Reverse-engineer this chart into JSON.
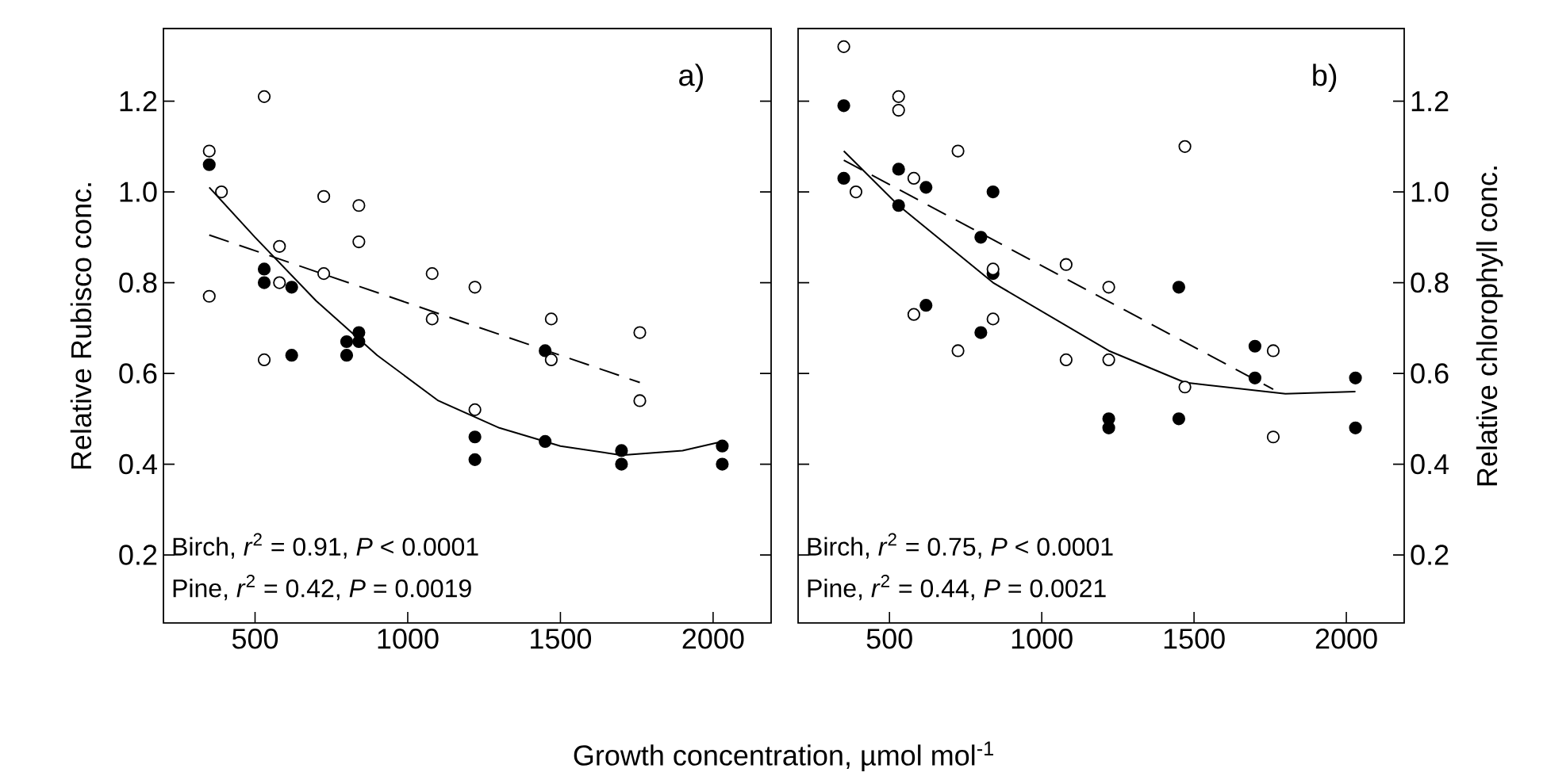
{
  "chart_data": [
    {
      "type": "scatter",
      "ylabel": "Relative Rubisco conc.",
      "xlabel": "Growth concentration, µmol mol$^{-1}$",
      "annotations": [
        "a)",
        "Birch, *r*$^{2}$ = 0.91, *P* < 0.0001",
        "Pine,  *r*$^{2}$ = 0.42, *P* = 0.0019"
      ],
      "xlim": [
        200,
        2190
      ],
      "xticks": [
        500,
        1000,
        1500,
        2000
      ],
      "ylim": [
        0.05,
        1.36
      ],
      "yticks": [
        0.2,
        0.4,
        0.6,
        0.8,
        {
          "value": 1.0,
          "label": "1.0"
        },
        1.2
      ],
      "grid": false,
      "series": [
        {
          "marker": "circle",
          "color": "#000000",
          "x": [
            350,
            530,
            530,
            620,
            620,
            800,
            800,
            840,
            840,
            1220,
            1220,
            1450,
            1450,
            1700,
            1700,
            2030,
            2030
          ],
          "values": [
            1.06,
            0.83,
            0.8,
            0.79,
            0.64,
            0.67,
            0.64,
            0.69,
            0.67,
            0.46,
            0.41,
            0.45,
            0.65,
            0.43,
            0.4,
            0.44,
            0.4
          ]
        },
        {
          "marker": "circle",
          "color": "#ffffff",
          "x": [
            350,
            350,
            390,
            530,
            530,
            580,
            580,
            725,
            725,
            840,
            840,
            1080,
            1080,
            1220,
            1220,
            1470,
            1470,
            1760,
            1760
          ],
          "values": [
            1.09,
            0.77,
            1.0,
            1.21,
            0.63,
            0.88,
            0.8,
            0.99,
            0.82,
            0.97,
            0.89,
            0.82,
            0.72,
            0.79,
            0.52,
            0.72,
            0.63,
            0.69,
            0.54
          ]
        },
        {
          "type": "line",
          "color": "#000000",
          "line_style": "solid",
          "x": [
            350,
            500,
            700,
            900,
            1100,
            1300,
            1500,
            1700,
            1900,
            2030
          ],
          "values": [
            1.01,
            0.9,
            0.76,
            0.64,
            0.54,
            0.48,
            0.44,
            0.42,
            0.43,
            0.45
          ]
        },
        {
          "type": "line",
          "color": "#000000",
          "line_style": "dashed",
          "x": [
            350,
            1760
          ],
          "values": [
            0.905,
            0.58
          ]
        }
      ]
    },
    {
      "type": "scatter",
      "y2label": "Relative chlorophyll conc.",
      "annotations": [
        "b)",
        "Birch, *r*$^{2}$ = 0.75, *P* < 0.0001",
        "Pine,  *r*$^{2}$ = 0.44, *P* = 0.0021"
      ],
      "xlim": [
        200,
        2190
      ],
      "xticks": [
        500,
        1000,
        1500,
        2000
      ],
      "y2lim": [
        0.05,
        1.36
      ],
      "y2ticks": [
        0.2,
        0.4,
        0.6,
        0.8,
        {
          "value": 1.0,
          "label": "1.0"
        },
        1.2
      ],
      "grid": false,
      "series": [
        {
          "marker": "circle",
          "axis": "y2",
          "color": "#000000",
          "x": [
            350,
            350,
            530,
            530,
            620,
            620,
            800,
            800,
            840,
            840,
            1220,
            1220,
            1450,
            1450,
            1700,
            1700,
            2030,
            2030
          ],
          "values": [
            1.19,
            1.03,
            1.05,
            0.97,
            1.01,
            0.75,
            0.9,
            0.69,
            1.0,
            0.82,
            0.5,
            0.48,
            0.79,
            0.5,
            0.66,
            0.59,
            0.59,
            0.48
          ]
        },
        {
          "marker": "circle",
          "axis": "y2",
          "color": "#ffffff",
          "x": [
            350,
            390,
            530,
            530,
            580,
            580,
            725,
            725,
            840,
            840,
            1080,
            1080,
            1220,
            1220,
            1470,
            1470,
            1760,
            1760
          ],
          "values": [
            1.32,
            1.0,
            1.21,
            1.18,
            1.03,
            0.73,
            1.09,
            0.65,
            0.83,
            0.72,
            0.84,
            0.63,
            0.79,
            0.63,
            1.1,
            0.57,
            0.65,
            0.46
          ]
        },
        {
          "type": "line",
          "axis": "y2",
          "color": "#000000",
          "line_style": "solid",
          "x": [
            350,
            530,
            840,
            1220,
            1470,
            1800,
            2030
          ],
          "values": [
            1.09,
            0.97,
            0.8,
            0.65,
            0.58,
            0.555,
            0.56
          ]
        },
        {
          "type": "line",
          "axis": "y2",
          "color": "#000000",
          "line_style": "dashed",
          "x": [
            350,
            1760
          ],
          "values": [
            1.07,
            0.565
          ]
        }
      ]
    }
  ]
}
